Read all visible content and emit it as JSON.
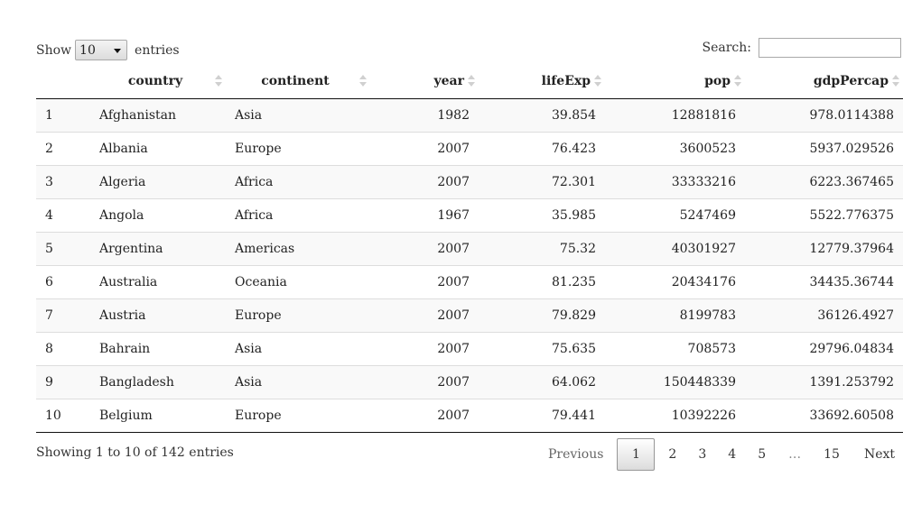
{
  "length_control": {
    "prefix": "Show",
    "value": "10",
    "suffix": "entries"
  },
  "search": {
    "label": "Search:",
    "value": ""
  },
  "table": {
    "columns": [
      {
        "label": "",
        "align": "al-l",
        "sortable": false
      },
      {
        "label": "country",
        "align": "al-c",
        "sortable": true
      },
      {
        "label": "continent",
        "align": "al-c",
        "sortable": true
      },
      {
        "label": "year",
        "align": "al-r",
        "sortable": true
      },
      {
        "label": "lifeExp",
        "align": "al-r",
        "sortable": true
      },
      {
        "label": "pop",
        "align": "al-r",
        "sortable": true
      },
      {
        "label": "gdpPercap",
        "align": "al-r",
        "sortable": true
      }
    ],
    "rows": [
      [
        "1",
        "Afghanistan",
        "Asia",
        "1982",
        "39.854",
        "12881816",
        "978.0114388"
      ],
      [
        "2",
        "Albania",
        "Europe",
        "2007",
        "76.423",
        "3600523",
        "5937.029526"
      ],
      [
        "3",
        "Algeria",
        "Africa",
        "2007",
        "72.301",
        "33333216",
        "6223.367465"
      ],
      [
        "4",
        "Angola",
        "Africa",
        "1967",
        "35.985",
        "5247469",
        "5522.776375"
      ],
      [
        "5",
        "Argentina",
        "Americas",
        "2007",
        "75.32",
        "40301927",
        "12779.37964"
      ],
      [
        "6",
        "Australia",
        "Oceania",
        "2007",
        "81.235",
        "20434176",
        "34435.36744"
      ],
      [
        "7",
        "Austria",
        "Europe",
        "2007",
        "79.829",
        "8199783",
        "36126.4927"
      ],
      [
        "8",
        "Bahrain",
        "Asia",
        "2007",
        "75.635",
        "708573",
        "29796.04834"
      ],
      [
        "9",
        "Bangladesh",
        "Asia",
        "2007",
        "64.062",
        "150448339",
        "1391.253792"
      ],
      [
        "10",
        "Belgium",
        "Europe",
        "2007",
        "79.441",
        "10392226",
        "33692.60508"
      ]
    ]
  },
  "info": "Showing 1 to 10 of 142 entries",
  "pagination": {
    "previous": "Previous",
    "pages": [
      "1",
      "2",
      "3",
      "4",
      "5",
      "…",
      "15"
    ],
    "current": "1",
    "next": "Next"
  }
}
